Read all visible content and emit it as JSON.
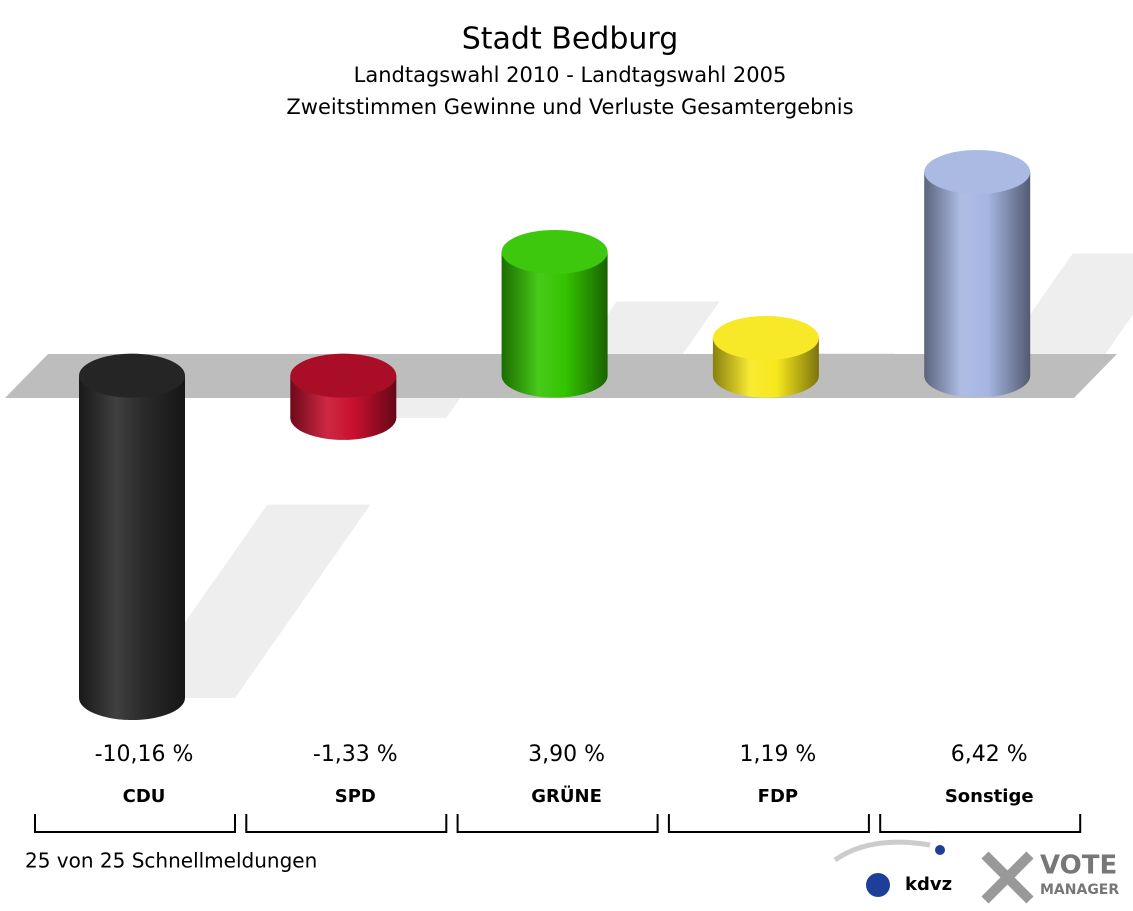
{
  "chart_data": {
    "type": "bar",
    "title": "Stadt Bedburg",
    "subtitle": "Landtagswahl 2010 - Landtagswahl 2005",
    "subtitle2": "Zweitstimmen Gewinne und Verluste Gesamtergebnis",
    "categories": [
      "CDU",
      "SPD",
      "GRÜNE",
      "FDP",
      "Sonstige"
    ],
    "values": [
      -10.16,
      -1.33,
      3.9,
      1.19,
      6.42
    ],
    "value_labels": [
      "-10,16 %",
      "-1,33 %",
      "3,90 %",
      "1,19 %",
      "6,42 %"
    ],
    "colors": [
      "#2b2b2b",
      "#c8102e",
      "#33c400",
      "#f7e81c",
      "#a6b6e2"
    ]
  },
  "footer": {
    "note": "25 von 25 Schnellmeldungen",
    "logo1": "kdvz",
    "logo2": "VOTE",
    "logo3": "MANAGER"
  }
}
